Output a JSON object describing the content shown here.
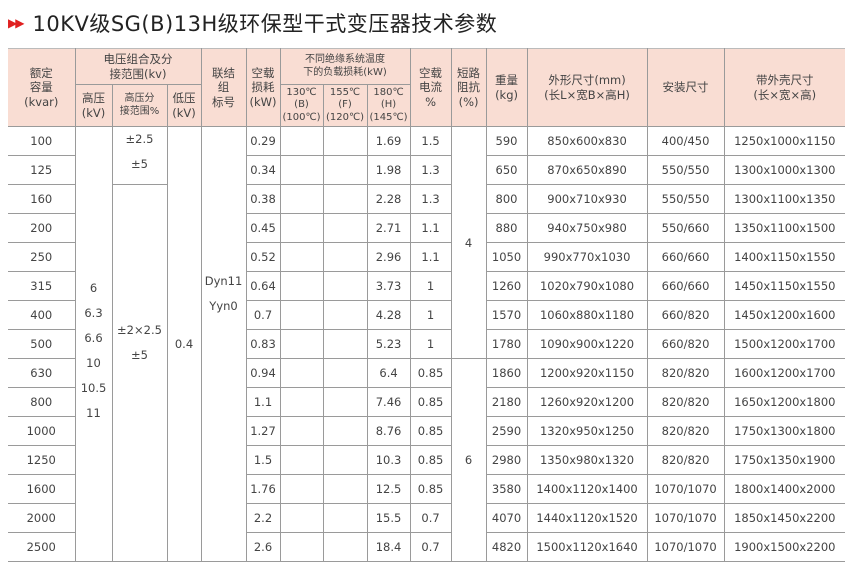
{
  "title": {
    "arrow_icon": "double-red-triangle",
    "text": "10KV级SG(B)13H级环保型干式变压器技术参数"
  },
  "colors": {
    "header_bg": "#f9ddd3",
    "arrow": "#e02020"
  },
  "headers": {
    "capacity": [
      "额定",
      "容量",
      "(kvar)"
    ],
    "voltage_group": [
      "电压组合及分",
      "接范围(kv)"
    ],
    "hv": [
      "高压",
      "(kV)"
    ],
    "hv_tap": [
      "高压分",
      "接范围%"
    ],
    "lv": [
      "低压",
      "(kV)"
    ],
    "connection": [
      "联结",
      "组",
      "标号"
    ],
    "no_load_loss": [
      "空载",
      "损耗",
      "(kW)"
    ],
    "load_loss_group": [
      "不同绝缘系统温度",
      "下的负载损耗(kW)"
    ],
    "t130": [
      "130℃",
      "(B)",
      "(100℃)"
    ],
    "t155": [
      "155℃",
      "(F)",
      "(120℃)"
    ],
    "t180": [
      "180℃",
      "(H)",
      "(145℃)"
    ],
    "no_load_current": [
      "空载",
      "电流",
      "%"
    ],
    "impedance": [
      "短路",
      "阻抗",
      "(%)"
    ],
    "weight": [
      "重量",
      "(kg)"
    ],
    "dimensions": [
      "外形尺寸(mm)",
      "(长L×宽B×高H)"
    ],
    "install": "安装尺寸",
    "shell": [
      "带外壳尺寸",
      "(长×宽×高)"
    ]
  },
  "merged": {
    "hv_values": [
      "6",
      "6.3",
      "6.6",
      "10",
      "10.5",
      "11"
    ],
    "tap_small": [
      "±2.5",
      "±5"
    ],
    "tap_large": [
      "±2×2.5",
      "±5"
    ],
    "lv": "0.4",
    "connection": [
      "Dyn11",
      "Yyn0"
    ],
    "impedance_a": "4",
    "impedance_b": "6"
  },
  "rows": [
    {
      "cap": "100",
      "p0": "0.29",
      "pk": "1.69",
      "i0": "1.5",
      "w": "590",
      "dim": "850x600x830",
      "inst": "400/450",
      "shell": "1250x1000x1150"
    },
    {
      "cap": "125",
      "p0": "0.34",
      "pk": "1.98",
      "i0": "1.3",
      "w": "650",
      "dim": "870x650x890",
      "inst": "550/550",
      "shell": "1300x1000x1300"
    },
    {
      "cap": "160",
      "p0": "0.38",
      "pk": "2.28",
      "i0": "1.3",
      "w": "800",
      "dim": "900x710x930",
      "inst": "550/550",
      "shell": "1300x1100x1350"
    },
    {
      "cap": "200",
      "p0": "0.45",
      "pk": "2.71",
      "i0": "1.1",
      "w": "880",
      "dim": "940x750x980",
      "inst": "550/660",
      "shell": "1350x1100x1500"
    },
    {
      "cap": "250",
      "p0": "0.52",
      "pk": "2.96",
      "i0": "1.1",
      "w": "1050",
      "dim": "990x770x1030",
      "inst": "660/660",
      "shell": "1400x1150x1550"
    },
    {
      "cap": "315",
      "p0": "0.64",
      "pk": "3.73",
      "i0": "1",
      "w": "1260",
      "dim": "1020x790x1080",
      "inst": "660/660",
      "shell": "1450x1150x1550"
    },
    {
      "cap": "400",
      "p0": "0.7",
      "pk": "4.28",
      "i0": "1",
      "w": "1570",
      "dim": "1060x880x1180",
      "inst": "660/820",
      "shell": "1450x1200x1600"
    },
    {
      "cap": "500",
      "p0": "0.83",
      "pk": "5.23",
      "i0": "1",
      "w": "1780",
      "dim": "1090x900x1220",
      "inst": "660/820",
      "shell": "1500x1200x1700"
    },
    {
      "cap": "630",
      "p0": "0.94",
      "pk": "6.4",
      "i0": "0.85",
      "w": "1860",
      "dim": "1200x920x1150",
      "inst": "820/820",
      "shell": "1600x1200x1700"
    },
    {
      "cap": "800",
      "p0": "1.1",
      "pk": "7.46",
      "i0": "0.85",
      "w": "2180",
      "dim": "1260x920x1200",
      "inst": "820/820",
      "shell": "1650x1200x1800"
    },
    {
      "cap": "1000",
      "p0": "1.27",
      "pk": "8.76",
      "i0": "0.85",
      "w": "2590",
      "dim": "1320x950x1250",
      "inst": "820/820",
      "shell": "1750x1300x1800"
    },
    {
      "cap": "1250",
      "p0": "1.5",
      "pk": "10.3",
      "i0": "0.85",
      "w": "2980",
      "dim": "1350x980x1320",
      "inst": "820/820",
      "shell": "1750x1350x1900"
    },
    {
      "cap": "1600",
      "p0": "1.76",
      "pk": "12.5",
      "i0": "0.85",
      "w": "3580",
      "dim": "1400x1120x1400",
      "inst": "1070/1070",
      "shell": "1800x1400x2000"
    },
    {
      "cap": "2000",
      "p0": "2.2",
      "pk": "15.5",
      "i0": "0.7",
      "w": "4070",
      "dim": "1440x1120x1520",
      "inst": "1070/1070",
      "shell": "1850x1450x2200"
    },
    {
      "cap": "2500",
      "p0": "2.6",
      "pk": "18.4",
      "i0": "0.7",
      "w": "4820",
      "dim": "1500x1120x1640",
      "inst": "1070/1070",
      "shell": "1900x1500x2200"
    }
  ]
}
